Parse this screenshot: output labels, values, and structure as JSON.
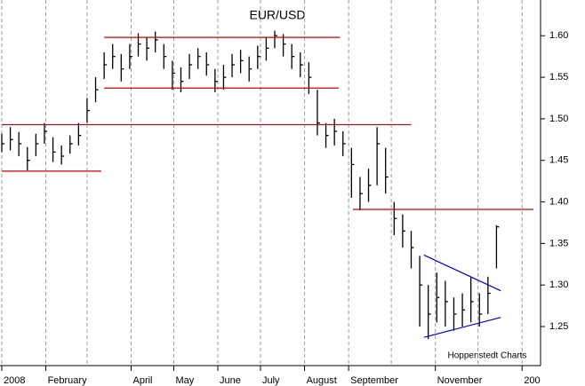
{
  "chart_data": {
    "type": "ohlc",
    "title": "EUR/USD",
    "source": "Hoppenstedt Charts",
    "xlim": [
      1,
      380
    ],
    "ylim": [
      1.203,
      1.643
    ],
    "xticks": [
      {
        "value": 1,
        "label": "2008"
      },
      {
        "value": 32,
        "label": "February"
      },
      {
        "value": 92,
        "label": "April"
      },
      {
        "value": 122,
        "label": "May"
      },
      {
        "value": 153,
        "label": "June"
      },
      {
        "value": 183,
        "label": "July"
      },
      {
        "value": 214,
        "label": "August"
      },
      {
        "value": 245,
        "label": "September"
      },
      {
        "value": 306,
        "label": "November"
      },
      {
        "value": 367,
        "label": "200"
      }
    ],
    "xgrid": [
      1,
      32,
      61,
      92,
      122,
      153,
      183,
      214,
      245,
      275,
      306,
      336,
      367
    ],
    "yticks": [
      {
        "value": 1.25,
        "label": "1.25"
      },
      {
        "value": 1.3,
        "label": "1.30"
      },
      {
        "value": 1.35,
        "label": "1.35"
      },
      {
        "value": 1.4,
        "label": "1.40"
      },
      {
        "value": 1.45,
        "label": "1.45"
      },
      {
        "value": 1.5,
        "label": "1.50"
      },
      {
        "value": 1.55,
        "label": "1.55"
      },
      {
        "value": 1.6,
        "label": "1.60"
      }
    ],
    "color": "#000000",
    "x": [
      1,
      7,
      13,
      19,
      25,
      31,
      37,
      43,
      49,
      55,
      61,
      67,
      73,
      79,
      85,
      91,
      97,
      103,
      109,
      115,
      121,
      127,
      133,
      139,
      145,
      151,
      157,
      163,
      169,
      175,
      181,
      187,
      193,
      199,
      205,
      211,
      217,
      223,
      229,
      235,
      241,
      247,
      253,
      259,
      265,
      271,
      277,
      283,
      289,
      295,
      301,
      307,
      313,
      319,
      325,
      331,
      337,
      343,
      349
    ],
    "high": [
      1.482,
      1.49,
      1.484,
      1.466,
      1.482,
      1.495,
      1.478,
      1.468,
      1.48,
      1.495,
      1.525,
      1.55,
      1.58,
      1.59,
      1.578,
      1.59,
      1.603,
      1.598,
      1.605,
      1.59,
      1.57,
      1.562,
      1.578,
      1.585,
      1.58,
      1.56,
      1.565,
      1.578,
      1.583,
      1.575,
      1.588,
      1.598,
      1.606,
      1.602,
      1.59,
      1.58,
      1.568,
      1.535,
      1.495,
      1.5,
      1.485,
      1.465,
      1.43,
      1.44,
      1.49,
      1.465,
      1.4,
      1.385,
      1.365,
      1.335,
      1.3,
      1.315,
      1.305,
      1.285,
      1.29,
      1.31,
      1.29,
      1.31,
      1.372
    ],
    "low": [
      1.46,
      1.462,
      1.455,
      1.438,
      1.455,
      1.47,
      1.448,
      1.445,
      1.458,
      1.468,
      1.495,
      1.52,
      1.548,
      1.56,
      1.545,
      1.56,
      1.575,
      1.57,
      1.58,
      1.56,
      1.535,
      1.532,
      1.548,
      1.56,
      1.552,
      1.532,
      1.535,
      1.55,
      1.555,
      1.545,
      1.56,
      1.57,
      1.585,
      1.575,
      1.56,
      1.55,
      1.53,
      1.48,
      1.465,
      1.468,
      1.455,
      1.405,
      1.39,
      1.4,
      1.42,
      1.41,
      1.36,
      1.345,
      1.32,
      1.25,
      1.235,
      1.255,
      1.25,
      1.245,
      1.25,
      1.255,
      1.25,
      1.265,
      1.32
    ],
    "close": [
      1.47,
      1.475,
      1.47,
      1.45,
      1.47,
      1.485,
      1.46,
      1.455,
      1.47,
      1.48,
      1.51,
      1.535,
      1.565,
      1.575,
      1.56,
      1.575,
      1.59,
      1.585,
      1.595,
      1.575,
      1.555,
      1.545,
      1.565,
      1.575,
      1.565,
      1.545,
      1.55,
      1.565,
      1.57,
      1.56,
      1.575,
      1.585,
      1.6,
      1.59,
      1.575,
      1.565,
      1.55,
      1.495,
      1.48,
      1.485,
      1.47,
      1.445,
      1.41,
      1.42,
      1.47,
      1.43,
      1.38,
      1.365,
      1.345,
      1.3,
      1.265,
      1.285,
      1.28,
      1.265,
      1.27,
      1.28,
      1.265,
      1.29,
      1.37
    ],
    "lines": [
      {
        "color": "#cc0000",
        "x": [
          1,
          71
        ],
        "y": [
          1.437,
          1.437
        ]
      },
      {
        "color": "#cc0000",
        "x": [
          73,
          239
        ],
        "y": [
          1.598,
          1.598
        ]
      },
      {
        "color": "#cc0000",
        "x": [
          73,
          238
        ],
        "y": [
          1.537,
          1.537
        ]
      },
      {
        "color": "#cc0000",
        "x": [
          1,
          289
        ],
        "y": [
          1.493,
          1.493
        ]
      },
      {
        "color": "#cc0000",
        "x": [
          248,
          375
        ],
        "y": [
          1.391,
          1.391
        ]
      },
      {
        "color": "#0000cc",
        "x": [
          298,
          352
        ],
        "y": [
          1.336,
          1.293
        ]
      },
      {
        "color": "#0000cc",
        "x": [
          298,
          352
        ],
        "y": [
          1.237,
          1.261
        ]
      }
    ]
  }
}
